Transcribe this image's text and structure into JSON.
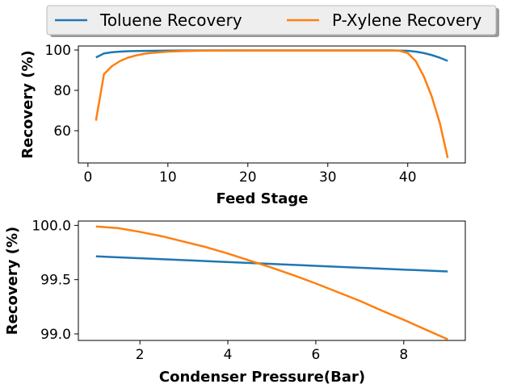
{
  "legend": {
    "location": "top-center",
    "entries": [
      {
        "label": "Toluene Recovery",
        "color": "#1f77b4"
      },
      {
        "label": "P-Xylene Recovery",
        "color": "#ff7f0e"
      }
    ]
  },
  "chart_data": [
    {
      "type": "line",
      "xlabel": "Feed Stage",
      "ylabel": "Recovery (%)",
      "xlim": [
        -1.2,
        47.2
      ],
      "ylim": [
        44,
        102
      ],
      "xticks": [
        0,
        10,
        20,
        30,
        40
      ],
      "yticks": [
        60,
        80,
        100
      ],
      "grid": false,
      "series": [
        {
          "name": "Toluene Recovery",
          "color": "#1f77b4",
          "x": [
            1,
            2,
            3,
            4,
            5,
            6,
            8,
            10,
            15,
            20,
            25,
            30,
            35,
            38,
            40,
            41,
            42,
            43,
            44,
            45
          ],
          "y": [
            96.3,
            98.3,
            98.9,
            99.2,
            99.4,
            99.5,
            99.6,
            99.7,
            99.8,
            99.8,
            99.8,
            99.8,
            99.8,
            99.8,
            99.6,
            99.2,
            98.5,
            97.5,
            96.2,
            94.6
          ]
        },
        {
          "name": "P-Xylene Recovery",
          "color": "#ff7f0e",
          "x": [
            1,
            2,
            3,
            4,
            5,
            6,
            7,
            8,
            10,
            12,
            15,
            20,
            25,
            30,
            35,
            38,
            39,
            40,
            41,
            42,
            43,
            44,
            45
          ],
          "y": [
            65,
            88,
            92,
            94.5,
            96.2,
            97.3,
            98.1,
            98.6,
            99.2,
            99.5,
            99.7,
            99.8,
            99.8,
            99.8,
            99.8,
            99.8,
            99.6,
            98.5,
            94.5,
            87,
            77,
            64,
            46.5
          ]
        }
      ]
    },
    {
      "type": "line",
      "xlabel": "Condenser Pressure(Bar)",
      "ylabel": "Recovery (%)",
      "xlim": [
        0.6,
        9.4
      ],
      "ylim": [
        98.94,
        100.04
      ],
      "xticks": [
        2,
        4,
        6,
        8
      ],
      "yticks": [
        99.0,
        99.5,
        100.0
      ],
      "ytick_labels": [
        "99.0",
        "99.5",
        "100.0"
      ],
      "grid": false,
      "series": [
        {
          "name": "Toluene Recovery",
          "color": "#1f77b4",
          "x": [
            1,
            9
          ],
          "y": [
            99.715,
            99.575
          ]
        },
        {
          "name": "P-Xylene Recovery",
          "color": "#ff7f0e",
          "x": [
            1,
            1.5,
            2,
            2.5,
            3,
            3.5,
            4,
            4.5,
            5,
            5.5,
            6,
            6.5,
            7,
            7.5,
            8,
            8.5,
            9
          ],
          "y": [
            99.99,
            99.975,
            99.94,
            99.9,
            99.85,
            99.8,
            99.74,
            99.675,
            99.61,
            99.54,
            99.465,
            99.385,
            99.305,
            99.215,
            99.13,
            99.04,
            98.95
          ]
        }
      ]
    }
  ]
}
